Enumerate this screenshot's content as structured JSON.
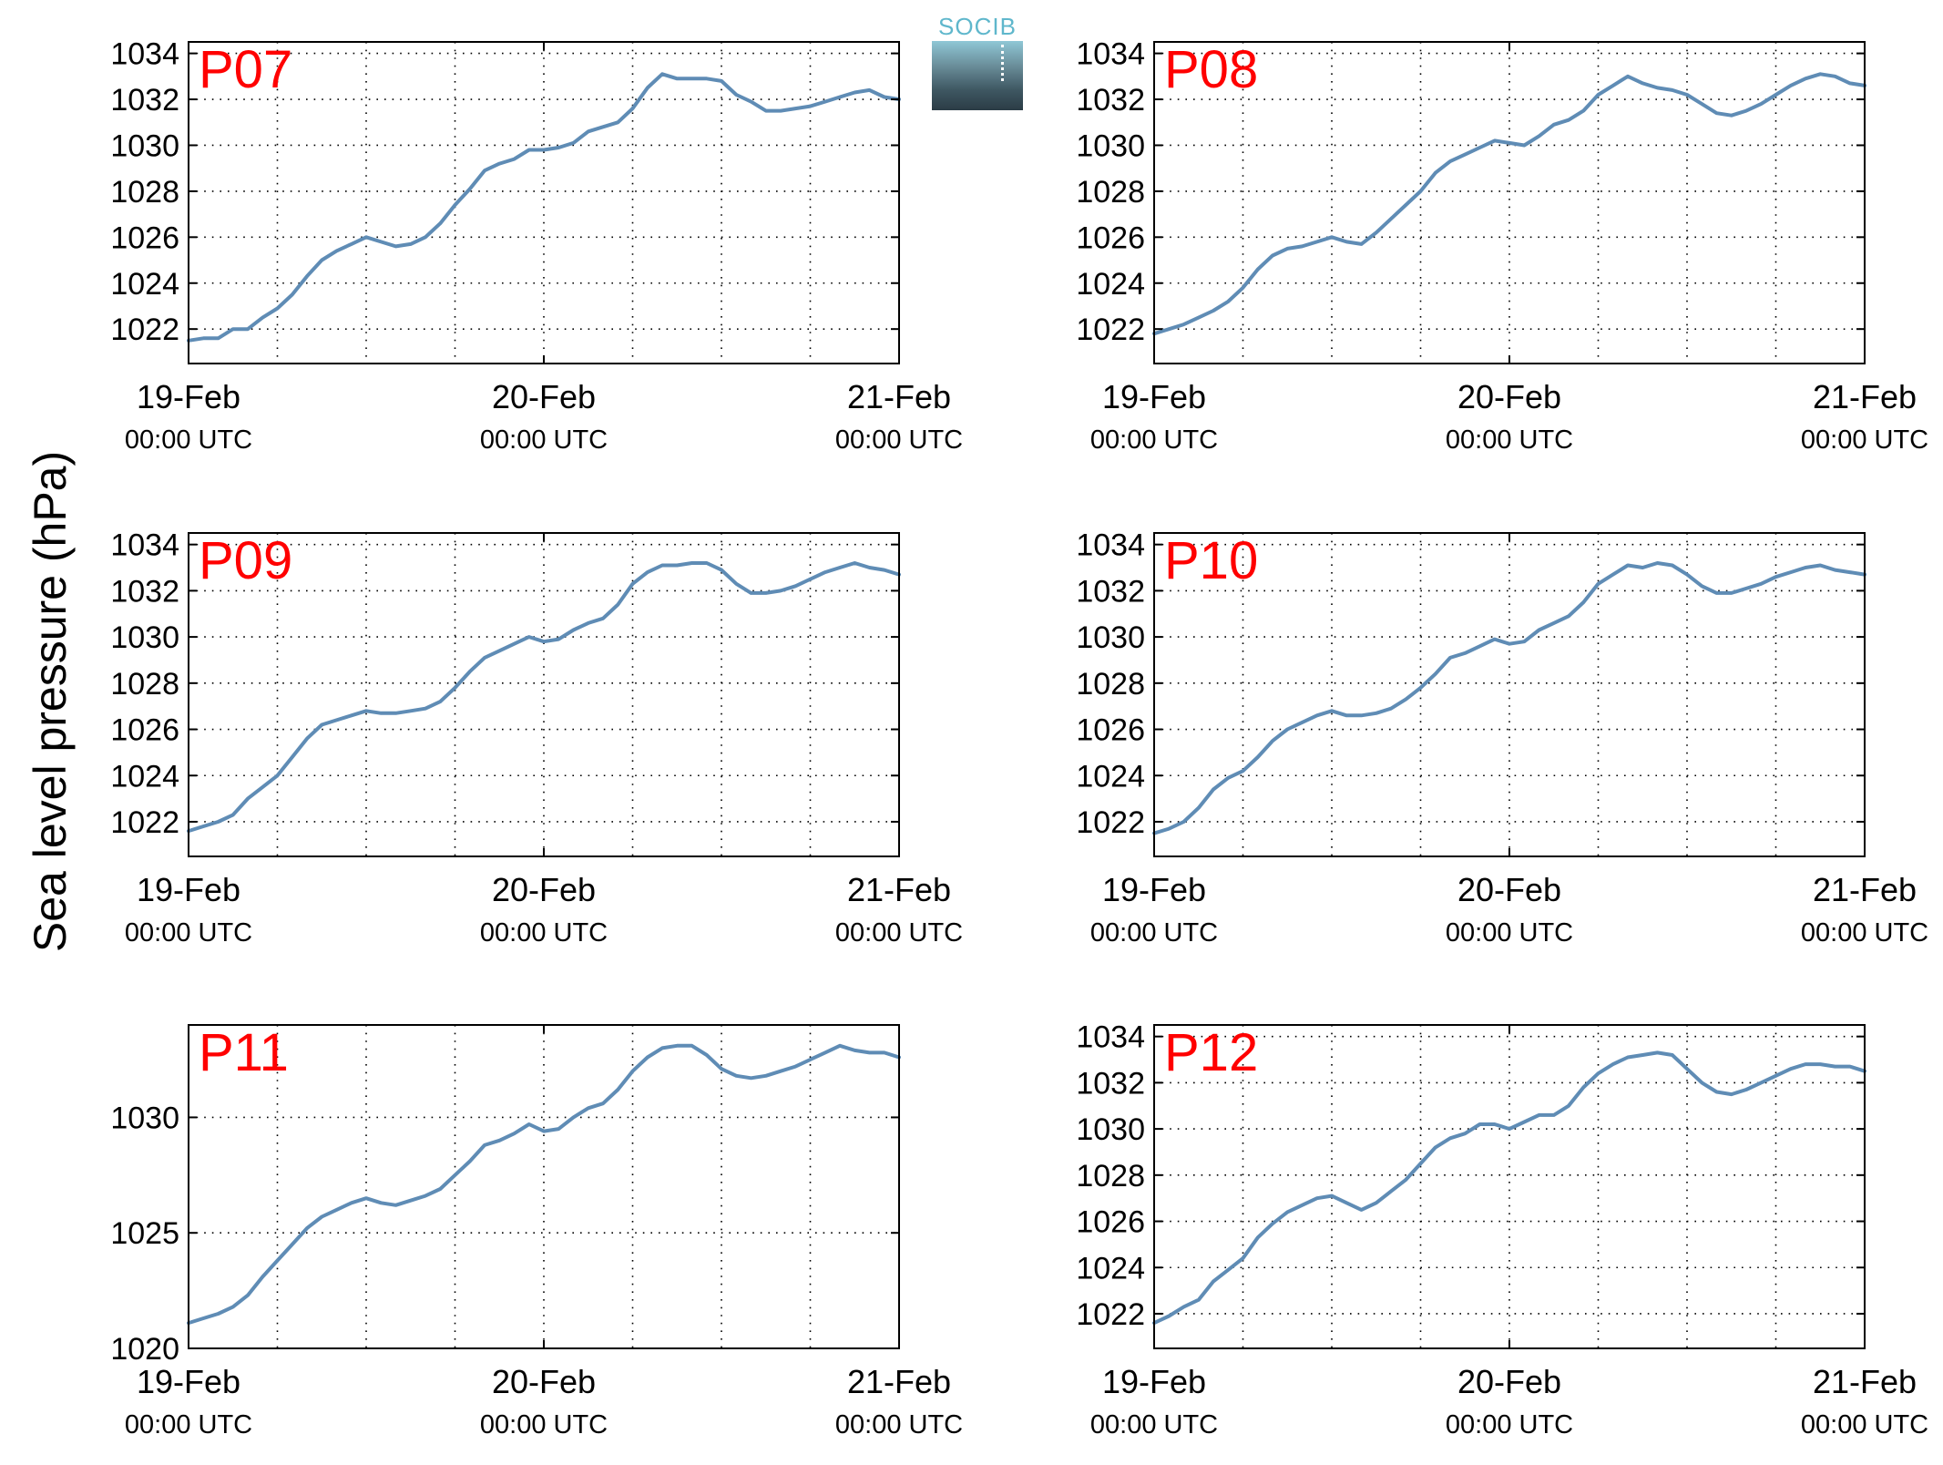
{
  "ylabel": "Sea level pressure (hPa)",
  "logo": {
    "text": "SOCIB"
  },
  "colors": {
    "line": "#5f8cb5",
    "panel_label": "#ff0000",
    "axis": "#000000"
  },
  "chart_data": [
    {
      "type": "line",
      "label": "P07",
      "xlim": [
        0,
        48
      ],
      "ylim": [
        1020.5,
        1034.5
      ],
      "yticks": [
        1022,
        1024,
        1026,
        1028,
        1030,
        1032,
        1034
      ],
      "xticks": [
        {
          "value": 0,
          "day": "19-Feb",
          "time": "00:00 UTC"
        },
        {
          "value": 24,
          "day": "20-Feb",
          "time": "00:00 UTC"
        },
        {
          "value": 48,
          "day": "21-Feb",
          "time": "00:00 UTC"
        }
      ],
      "grid": true,
      "x": [
        0,
        1,
        2,
        3,
        4,
        5,
        6,
        7,
        8,
        9,
        10,
        11,
        12,
        13,
        14,
        15,
        16,
        17,
        18,
        19,
        20,
        21,
        22,
        23,
        24,
        25,
        26,
        27,
        28,
        29,
        30,
        31,
        32,
        33,
        34,
        35,
        36,
        37,
        38,
        39,
        40,
        41,
        42,
        43,
        44,
        45,
        46,
        47,
        48
      ],
      "y": [
        1021.5,
        1021.6,
        1021.6,
        1022.0,
        1022.0,
        1022.5,
        1022.9,
        1023.5,
        1024.3,
        1025.0,
        1025.4,
        1025.7,
        1026.0,
        1025.8,
        1025.6,
        1025.7,
        1026.0,
        1026.6,
        1027.4,
        1028.1,
        1028.9,
        1029.2,
        1029.4,
        1029.8,
        1029.8,
        1029.9,
        1030.1,
        1030.6,
        1030.8,
        1031.0,
        1031.6,
        1032.5,
        1033.1,
        1032.9,
        1032.9,
        1032.9,
        1032.8,
        1032.2,
        1031.9,
        1031.5,
        1031.5,
        1031.6,
        1031.7,
        1031.9,
        1032.1,
        1032.3,
        1032.4,
        1032.1,
        1032.0
      ]
    },
    {
      "type": "line",
      "label": "P08",
      "xlim": [
        0,
        48
      ],
      "ylim": [
        1020.5,
        1034.5
      ],
      "yticks": [
        1022,
        1024,
        1026,
        1028,
        1030,
        1032,
        1034
      ],
      "xticks": [
        {
          "value": 0,
          "day": "19-Feb",
          "time": "00:00 UTC"
        },
        {
          "value": 24,
          "day": "20-Feb",
          "time": "00:00 UTC"
        },
        {
          "value": 48,
          "day": "21-Feb",
          "time": "00:00 UTC"
        }
      ],
      "grid": true,
      "x": [
        0,
        1,
        2,
        3,
        4,
        5,
        6,
        7,
        8,
        9,
        10,
        11,
        12,
        13,
        14,
        15,
        16,
        17,
        18,
        19,
        20,
        21,
        22,
        23,
        24,
        25,
        26,
        27,
        28,
        29,
        30,
        31,
        32,
        33,
        34,
        35,
        36,
        37,
        38,
        39,
        40,
        41,
        42,
        43,
        44,
        45,
        46,
        47,
        48
      ],
      "y": [
        1021.8,
        1022.0,
        1022.2,
        1022.5,
        1022.8,
        1023.2,
        1023.8,
        1024.6,
        1025.2,
        1025.5,
        1025.6,
        1025.8,
        1026.0,
        1025.8,
        1025.7,
        1026.2,
        1026.8,
        1027.4,
        1028.0,
        1028.8,
        1029.3,
        1029.6,
        1029.9,
        1030.2,
        1030.1,
        1030.0,
        1030.4,
        1030.9,
        1031.1,
        1031.5,
        1032.2,
        1032.6,
        1033.0,
        1032.7,
        1032.5,
        1032.4,
        1032.2,
        1031.8,
        1031.4,
        1031.3,
        1031.5,
        1031.8,
        1032.2,
        1032.6,
        1032.9,
        1033.1,
        1033.0,
        1032.7,
        1032.6
      ]
    },
    {
      "type": "line",
      "label": "P09",
      "xlim": [
        0,
        48
      ],
      "ylim": [
        1020.5,
        1034.5
      ],
      "yticks": [
        1022,
        1024,
        1026,
        1028,
        1030,
        1032,
        1034
      ],
      "xticks": [
        {
          "value": 0,
          "day": "19-Feb",
          "time": "00:00 UTC"
        },
        {
          "value": 24,
          "day": "20-Feb",
          "time": "00:00 UTC"
        },
        {
          "value": 48,
          "day": "21-Feb",
          "time": "00:00 UTC"
        }
      ],
      "grid": true,
      "x": [
        0,
        1,
        2,
        3,
        4,
        5,
        6,
        7,
        8,
        9,
        10,
        11,
        12,
        13,
        14,
        15,
        16,
        17,
        18,
        19,
        20,
        21,
        22,
        23,
        24,
        25,
        26,
        27,
        28,
        29,
        30,
        31,
        32,
        33,
        34,
        35,
        36,
        37,
        38,
        39,
        40,
        41,
        42,
        43,
        44,
        45,
        46,
        47,
        48
      ],
      "y": [
        1021.6,
        1021.8,
        1022.0,
        1022.3,
        1023.0,
        1023.5,
        1024.0,
        1024.8,
        1025.6,
        1026.2,
        1026.4,
        1026.6,
        1026.8,
        1026.7,
        1026.7,
        1026.8,
        1026.9,
        1027.2,
        1027.8,
        1028.5,
        1029.1,
        1029.4,
        1029.7,
        1030.0,
        1029.8,
        1029.9,
        1030.3,
        1030.6,
        1030.8,
        1031.4,
        1032.3,
        1032.8,
        1033.1,
        1033.1,
        1033.2,
        1033.2,
        1032.9,
        1032.3,
        1031.9,
        1031.9,
        1032.0,
        1032.2,
        1032.5,
        1032.8,
        1033.0,
        1033.2,
        1033.0,
        1032.9,
        1032.7
      ]
    },
    {
      "type": "line",
      "label": "P10",
      "xlim": [
        0,
        48
      ],
      "ylim": [
        1020.5,
        1034.5
      ],
      "yticks": [
        1022,
        1024,
        1026,
        1028,
        1030,
        1032,
        1034
      ],
      "xticks": [
        {
          "value": 0,
          "day": "19-Feb",
          "time": "00:00 UTC"
        },
        {
          "value": 24,
          "day": "20-Feb",
          "time": "00:00 UTC"
        },
        {
          "value": 48,
          "day": "21-Feb",
          "time": "00:00 UTC"
        }
      ],
      "grid": true,
      "x": [
        0,
        1,
        2,
        3,
        4,
        5,
        6,
        7,
        8,
        9,
        10,
        11,
        12,
        13,
        14,
        15,
        16,
        17,
        18,
        19,
        20,
        21,
        22,
        23,
        24,
        25,
        26,
        27,
        28,
        29,
        30,
        31,
        32,
        33,
        34,
        35,
        36,
        37,
        38,
        39,
        40,
        41,
        42,
        43,
        44,
        45,
        46,
        47,
        48
      ],
      "y": [
        1021.5,
        1021.7,
        1022.0,
        1022.6,
        1023.4,
        1023.9,
        1024.2,
        1024.8,
        1025.5,
        1026.0,
        1026.3,
        1026.6,
        1026.8,
        1026.6,
        1026.6,
        1026.7,
        1026.9,
        1027.3,
        1027.8,
        1028.4,
        1029.1,
        1029.3,
        1029.6,
        1029.9,
        1029.7,
        1029.8,
        1030.3,
        1030.6,
        1030.9,
        1031.5,
        1032.3,
        1032.7,
        1033.1,
        1033.0,
        1033.2,
        1033.1,
        1032.7,
        1032.2,
        1031.9,
        1031.9,
        1032.1,
        1032.3,
        1032.6,
        1032.8,
        1033.0,
        1033.1,
        1032.9,
        1032.8,
        1032.7
      ]
    },
    {
      "type": "line",
      "label": "P11",
      "xlim": [
        0,
        48
      ],
      "ylim": [
        1020,
        1034
      ],
      "yticks": [
        1020,
        1025,
        1030
      ],
      "xticks": [
        {
          "value": 0,
          "day": "19-Feb",
          "time": "00:00 UTC"
        },
        {
          "value": 24,
          "day": "20-Feb",
          "time": "00:00 UTC"
        },
        {
          "value": 48,
          "day": "21-Feb",
          "time": "00:00 UTC"
        }
      ],
      "grid": true,
      "x": [
        0,
        1,
        2,
        3,
        4,
        5,
        6,
        7,
        8,
        9,
        10,
        11,
        12,
        13,
        14,
        15,
        16,
        17,
        18,
        19,
        20,
        21,
        22,
        23,
        24,
        25,
        26,
        27,
        28,
        29,
        30,
        31,
        32,
        33,
        34,
        35,
        36,
        37,
        38,
        39,
        40,
        41,
        42,
        43,
        44,
        45,
        46,
        47,
        48
      ],
      "y": [
        1021.1,
        1021.3,
        1021.5,
        1021.8,
        1022.3,
        1023.1,
        1023.8,
        1024.5,
        1025.2,
        1025.7,
        1026.0,
        1026.3,
        1026.5,
        1026.3,
        1026.2,
        1026.4,
        1026.6,
        1026.9,
        1027.5,
        1028.1,
        1028.8,
        1029.0,
        1029.3,
        1029.7,
        1029.4,
        1029.5,
        1030.0,
        1030.4,
        1030.6,
        1031.2,
        1032.0,
        1032.6,
        1033.0,
        1033.1,
        1033.1,
        1032.7,
        1032.1,
        1031.8,
        1031.7,
        1031.8,
        1032.0,
        1032.2,
        1032.5,
        1032.8,
        1033.1,
        1032.9,
        1032.8,
        1032.8,
        1032.6
      ]
    },
    {
      "type": "line",
      "label": "P12",
      "xlim": [
        0,
        48
      ],
      "ylim": [
        1020.5,
        1034.5
      ],
      "yticks": [
        1022,
        1024,
        1026,
        1028,
        1030,
        1032,
        1034
      ],
      "xticks": [
        {
          "value": 0,
          "day": "19-Feb",
          "time": "00:00 UTC"
        },
        {
          "value": 24,
          "day": "20-Feb",
          "time": "00:00 UTC"
        },
        {
          "value": 48,
          "day": "21-Feb",
          "time": "00:00 UTC"
        }
      ],
      "grid": true,
      "x": [
        0,
        1,
        2,
        3,
        4,
        5,
        6,
        7,
        8,
        9,
        10,
        11,
        12,
        13,
        14,
        15,
        16,
        17,
        18,
        19,
        20,
        21,
        22,
        23,
        24,
        25,
        26,
        27,
        28,
        29,
        30,
        31,
        32,
        33,
        34,
        35,
        36,
        37,
        38,
        39,
        40,
        41,
        42,
        43,
        44,
        45,
        46,
        47,
        48
      ],
      "y": [
        1021.6,
        1021.9,
        1022.3,
        1022.6,
        1023.4,
        1023.9,
        1024.4,
        1025.3,
        1025.9,
        1026.4,
        1026.7,
        1027.0,
        1027.1,
        1026.8,
        1026.5,
        1026.8,
        1027.3,
        1027.8,
        1028.5,
        1029.2,
        1029.6,
        1029.8,
        1030.2,
        1030.2,
        1030.0,
        1030.3,
        1030.6,
        1030.6,
        1031.0,
        1031.8,
        1032.4,
        1032.8,
        1033.1,
        1033.2,
        1033.3,
        1033.2,
        1032.6,
        1032.0,
        1031.6,
        1031.5,
        1031.7,
        1032.0,
        1032.3,
        1032.6,
        1032.8,
        1032.8,
        1032.7,
        1032.7,
        1032.5
      ]
    }
  ]
}
